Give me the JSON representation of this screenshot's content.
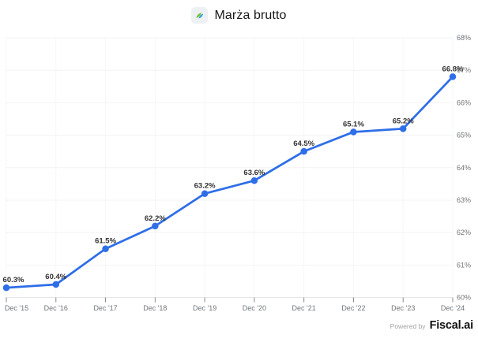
{
  "header": {
    "title": "Marża brutto",
    "icon": "fiscal-logo-icon"
  },
  "chart_data": {
    "type": "line",
    "title": "Marża brutto",
    "series_name": "Marża brutto",
    "x": [
      "Dec '15",
      "Dec '16",
      "Dec '17",
      "Dec '18",
      "Dec '19",
      "Dec '20",
      "Dec '21",
      "Dec '22",
      "Dec '23",
      "Dec '24"
    ],
    "values": [
      60.3,
      60.4,
      61.5,
      62.2,
      63.2,
      63.6,
      64.5,
      65.1,
      65.2,
      66.8
    ],
    "point_labels": [
      "60.3%",
      "60.4%",
      "61.5%",
      "62.2%",
      "63.2%",
      "63.6%",
      "64.5%",
      "65.1%",
      "65.2%",
      "66.8%"
    ],
    "xlabel": "",
    "ylabel": "",
    "ylim": [
      60,
      68
    ],
    "y_ticks": [
      {
        "value": 60,
        "label": "60%"
      },
      {
        "value": 61,
        "label": "61%"
      },
      {
        "value": 62,
        "label": "62%"
      },
      {
        "value": 63,
        "label": "63%"
      },
      {
        "value": 64,
        "label": "64%"
      },
      {
        "value": 65,
        "label": "65%"
      },
      {
        "value": 66,
        "label": "66%"
      },
      {
        "value": 67,
        "label": "67%"
      },
      {
        "value": 68,
        "label": "68%"
      }
    ],
    "grid": true,
    "legend_position": "none",
    "colors": {
      "line": "#2e6ee8",
      "marker": "#2e6ee8",
      "point_label": "#333333",
      "axis_label": "#6f7479",
      "grid_horizontal": "#f3f3f3",
      "grid_vertical": "#f7f7f7",
      "axis_line": "#e7e7e7",
      "tick": "#8a8a8a"
    }
  },
  "footer": {
    "powered_by": "Powered by",
    "brand": "Fiscal.ai"
  }
}
